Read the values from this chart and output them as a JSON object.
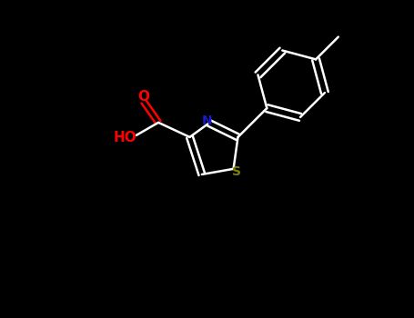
{
  "background_color": "#000000",
  "bond_color": "#ffffff",
  "N_color": "#1a1acd",
  "O_color": "#FF0000",
  "S_color": "#808000",
  "label_N": "N",
  "label_S": "S",
  "label_O": "O",
  "label_HO": "HO",
  "figsize": [
    4.55,
    3.5
  ],
  "dpi": 100
}
